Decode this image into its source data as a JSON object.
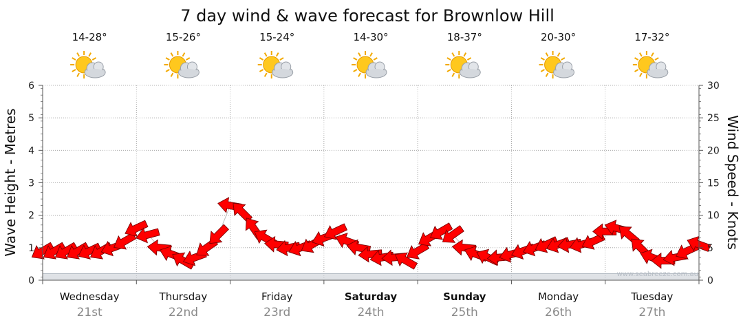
{
  "colors": {
    "arrow_fill": "#ff0000",
    "arrow_stroke": "#7a0000",
    "wave_area": "#c9cfd6",
    "grid": "#999999",
    "axis": "#555555",
    "date_text": "#8a8a8a"
  },
  "chart_data": {
    "type": "line",
    "title": "7 day wind & wave forecast for Brownlow Hill",
    "y_left": {
      "label": "Wave Height - Metres",
      "ticks": [
        "0",
        "1",
        "2",
        "3",
        "4",
        "5",
        "6"
      ],
      "range": [
        0,
        6
      ]
    },
    "y_right": {
      "label": "Wind Speed - Knots",
      "ticks": [
        "0",
        "5",
        "10",
        "15",
        "20",
        "25",
        "30"
      ],
      "range": [
        0,
        30
      ]
    },
    "grid": true,
    "days": [
      {
        "day": "Wednesday",
        "date": "21st",
        "temp": "14-28°",
        "icon": "partly-cloudy-icon",
        "bold": false
      },
      {
        "day": "Thursday",
        "date": "22nd",
        "temp": "15-26°",
        "icon": "partly-cloudy-icon",
        "bold": false
      },
      {
        "day": "Friday",
        "date": "23rd",
        "temp": "15-24°",
        "icon": "partly-cloudy-icon",
        "bold": false
      },
      {
        "day": "Saturday",
        "date": "24th",
        "temp": "14-30°",
        "icon": "partly-cloudy-icon",
        "bold": true
      },
      {
        "day": "Sunday",
        "date": "25th",
        "temp": "18-37°",
        "icon": "partly-cloudy-icon",
        "bold": true
      },
      {
        "day": "Monday",
        "date": "26th",
        "temp": "20-30°",
        "icon": "partly-cloudy-icon",
        "bold": false
      },
      {
        "day": "Tuesday",
        "date": "27th",
        "temp": "17-32°",
        "icon": "partly-cloudy-icon",
        "bold": false
      }
    ],
    "series": [
      {
        "name": "wind",
        "units": "knots",
        "hours": [
          0,
          3,
          6,
          9,
          12,
          15,
          18,
          21,
          24,
          27,
          30,
          33,
          36,
          39,
          42,
          45,
          48,
          51,
          54,
          57,
          60,
          63,
          66,
          69,
          72,
          75,
          78,
          81,
          84,
          87,
          90,
          93,
          96,
          99,
          102,
          105,
          108,
          111,
          114,
          117,
          120,
          123,
          126,
          129,
          132,
          135,
          138,
          141,
          144,
          147,
          150,
          153,
          156,
          159,
          162,
          165,
          168
        ],
        "speed": [
          4.5,
          4.5,
          4.5,
          4.5,
          4.5,
          4.5,
          5.0,
          6.0,
          8.0,
          7.0,
          5.0,
          4.0,
          3.0,
          3.5,
          5.0,
          7.0,
          11.5,
          10.5,
          8.0,
          6.5,
          5.5,
          5.0,
          5.0,
          5.5,
          6.5,
          7.5,
          6.0,
          5.0,
          4.0,
          3.5,
          3.5,
          3.0,
          4.5,
          6.5,
          7.5,
          7.0,
          5.0,
          4.0,
          3.5,
          3.5,
          4.0,
          4.5,
          5.0,
          5.5,
          5.5,
          5.5,
          5.5,
          6.0,
          7.5,
          8.0,
          7.0,
          5.0,
          3.5,
          3.0,
          3.5,
          4.5,
          5.5
        ],
        "direction_deg": [
          60,
          60,
          60,
          60,
          65,
          60,
          70,
          60,
          65,
          75,
          95,
          110,
          120,
          70,
          55,
          45,
          100,
          135,
          145,
          120,
          95,
          80,
          70,
          60,
          70,
          65,
          110,
          100,
          85,
          80,
          85,
          120,
          60,
          60,
          60,
          55,
          95,
          110,
          115,
          85,
          75,
          70,
          70,
          65,
          70,
          80,
          75,
          65,
          90,
          105,
          130,
          135,
          110,
          90,
          80,
          65,
          110
        ]
      },
      {
        "name": "wave",
        "units": "metres",
        "hours": [
          0,
          6,
          12,
          18,
          24,
          30,
          36,
          42,
          48,
          54,
          60,
          66,
          72,
          78,
          84,
          90,
          96,
          102,
          108,
          114,
          120,
          126,
          132,
          138,
          144,
          150,
          156,
          162,
          168
        ],
        "height": [
          0.2,
          0.2,
          0.2,
          0.2,
          0.2,
          0.2,
          0.2,
          0.2,
          0.2,
          0.2,
          0.2,
          0.2,
          0.2,
          0.2,
          0.2,
          0.2,
          0.2,
          0.2,
          0.2,
          0.2,
          0.2,
          0.2,
          0.2,
          0.2,
          0.2,
          0.2,
          0.2,
          0.2,
          0.2
        ]
      }
    ]
  },
  "watermark": "www.seabreeze.com.au"
}
